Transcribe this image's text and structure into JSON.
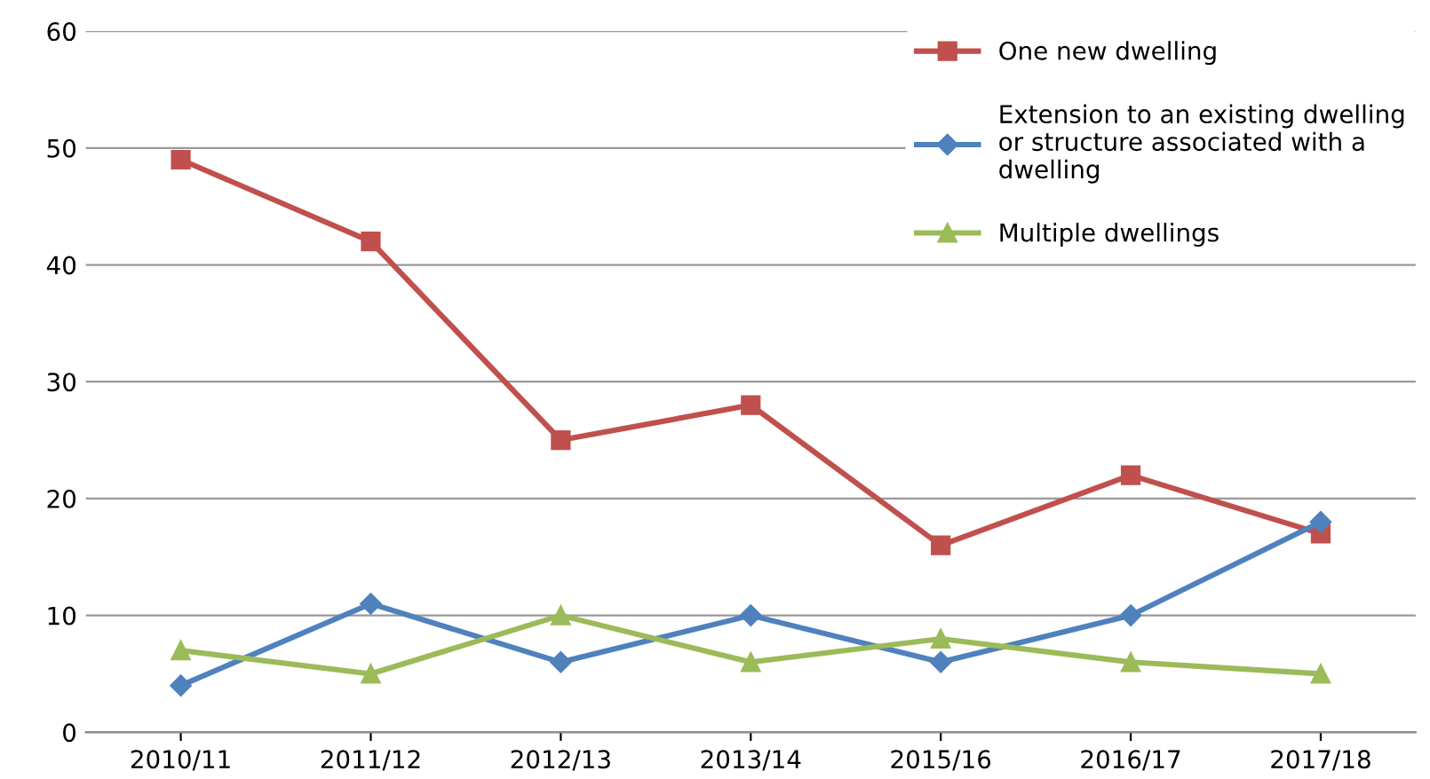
{
  "chart_data": {
    "type": "line",
    "categories": [
      "2010/11",
      "2011/12",
      "2012/13",
      "2013/14",
      "2015/16",
      "2016/17",
      "2017/18"
    ],
    "series": [
      {
        "name": "One new dwelling",
        "color": "#c0504d",
        "marker": "square",
        "values": [
          49,
          42,
          25,
          28,
          16,
          22,
          17
        ]
      },
      {
        "name": "Extension to an existing dwelling\nor structure associated with a\ndwelling",
        "color": "#4f81bd",
        "marker": "diamond",
        "values": [
          4,
          11,
          6,
          10,
          6,
          10,
          18
        ]
      },
      {
        "name": "Multiple dwellings",
        "color": "#9bbb59",
        "marker": "triangle",
        "values": [
          7,
          5,
          10,
          6,
          8,
          6,
          5
        ]
      }
    ],
    "ylim": [
      0,
      60
    ],
    "yticks": [
      0,
      10,
      20,
      30,
      40,
      50,
      60
    ],
    "grid": "y",
    "legend": "top right",
    "line_style": "solid"
  }
}
